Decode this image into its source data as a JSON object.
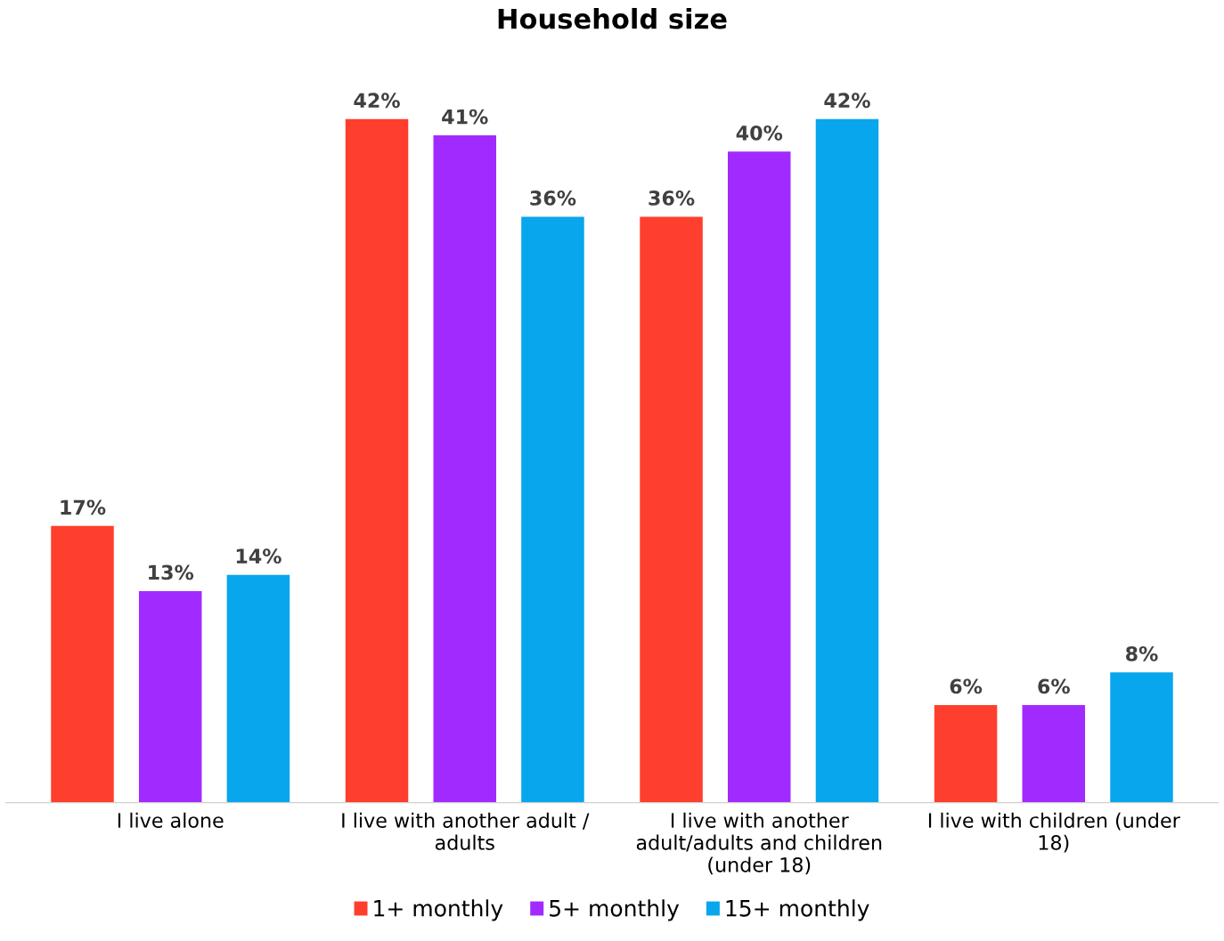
{
  "chart_data": {
    "type": "bar",
    "title": "Household size",
    "categories": [
      "I live alone",
      "I live with another adult / adults",
      "I live with another adult/adults and children (under 18)",
      "I live with children (under 18)"
    ],
    "series": [
      {
        "name": "1+ monthly",
        "color": "#fe3f2d",
        "values": [
          17,
          42,
          36,
          6
        ],
        "value_labels": [
          "17%",
          "42%",
          "36%",
          "6%"
        ]
      },
      {
        "name": "5+ monthly",
        "color": "#a12bfe",
        "values": [
          13,
          41,
          40,
          6
        ],
        "value_labels": [
          "13%",
          "41%",
          "40%",
          "6%"
        ]
      },
      {
        "name": "15+ monthly",
        "color": "#08a6ec",
        "values": [
          14,
          36,
          42,
          8
        ],
        "value_labels": [
          "14%",
          "36%",
          "42%",
          "8%"
        ]
      }
    ],
    "legend": "bottom",
    "grid": false
  }
}
